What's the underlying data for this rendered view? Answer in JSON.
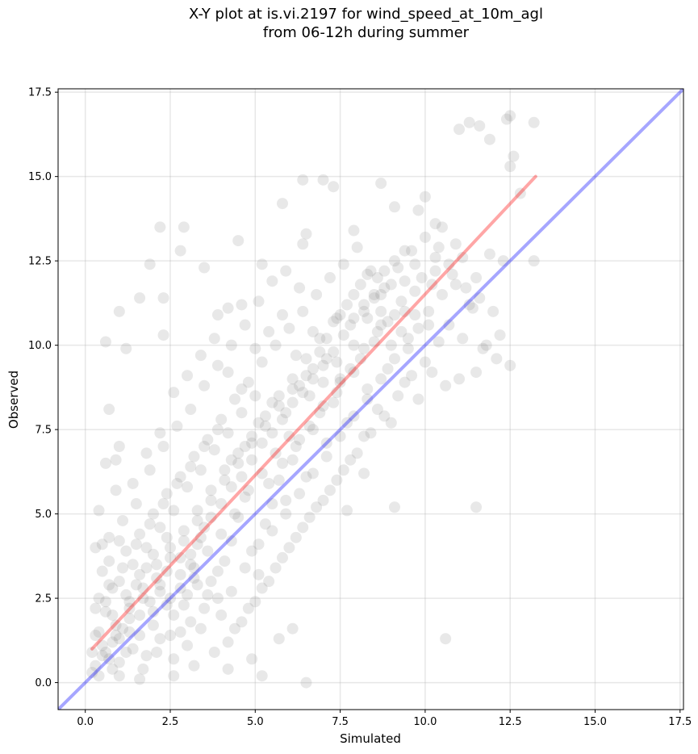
{
  "chart_data": {
    "type": "scatter",
    "title": "X-Y plot at is.vi.2197 for wind_speed_at_10m_agl",
    "subtitle": "from 06-12h during summer",
    "xlabel": "Simulated",
    "ylabel": "Observed",
    "xlim": [
      -0.8,
      17.6
    ],
    "ylim": [
      -0.8,
      17.6
    ],
    "xticks": [
      0.0,
      2.5,
      5.0,
      7.5,
      10.0,
      12.5,
      15.0,
      17.5
    ],
    "yticks": [
      0.0,
      2.5,
      5.0,
      7.5,
      10.0,
      12.5,
      15.0,
      17.5
    ],
    "xtick_labels": [
      "0.0",
      "2.5",
      "5.0",
      "7.5",
      "10.0",
      "12.5",
      "15.0",
      "17.5"
    ],
    "ytick_labels": [
      "0.0",
      "2.5",
      "5.0",
      "7.5",
      "10.0",
      "12.5",
      "15.0",
      "17.5"
    ],
    "grid": true,
    "point_color": "#808080",
    "point_alpha": 0.18,
    "reference_line": {
      "x": [
        -0.8,
        17.6
      ],
      "y": [
        -0.8,
        17.6
      ],
      "color": "#0000ff",
      "alpha": 0.35
    },
    "fit_line": {
      "x": [
        0.2,
        13.25
      ],
      "y": [
        1.0,
        15.0
      ],
      "color": "#ff0000",
      "alpha": 0.35
    },
    "points": [
      [
        0.3,
        4.0
      ],
      [
        0.4,
        5.1
      ],
      [
        0.5,
        4.1
      ],
      [
        0.7,
        4.3
      ],
      [
        0.6,
        6.5
      ],
      [
        0.9,
        5.7
      ],
      [
        0.9,
        6.6
      ],
      [
        1.0,
        7.0
      ],
      [
        0.7,
        8.1
      ],
      [
        0.6,
        10.1
      ],
      [
        1.0,
        11.0
      ],
      [
        1.2,
        9.9
      ],
      [
        1.6,
        11.4
      ],
      [
        1.9,
        12.4
      ],
      [
        2.3,
        11.4
      ],
      [
        2.3,
        10.3
      ],
      [
        2.2,
        13.5
      ],
      [
        2.9,
        13.5
      ],
      [
        2.8,
        12.8
      ],
      [
        3.5,
        12.3
      ],
      [
        3.9,
        10.9
      ],
      [
        4.2,
        11.1
      ],
      [
        4.6,
        11.2
      ],
      [
        4.5,
        13.1
      ],
      [
        5.2,
        12.4
      ],
      [
        5.8,
        14.2
      ],
      [
        6.4,
        13.0
      ],
      [
        6.5,
        13.3
      ],
      [
        6.4,
        14.9
      ],
      [
        7.0,
        14.9
      ],
      [
        7.3,
        14.7
      ],
      [
        7.9,
        13.4
      ],
      [
        8.7,
        14.8
      ],
      [
        9.1,
        14.1
      ],
      [
        9.4,
        12.8
      ],
      [
        9.8,
        14.0
      ],
      [
        10.0,
        14.4
      ],
      [
        10.3,
        13.6
      ],
      [
        10.5,
        13.5
      ],
      [
        11.0,
        16.4
      ],
      [
        11.3,
        16.6
      ],
      [
        11.6,
        16.5
      ],
      [
        11.9,
        16.1
      ],
      [
        12.4,
        16.7
      ],
      [
        12.5,
        16.8
      ],
      [
        12.6,
        15.6
      ],
      [
        12.5,
        15.3
      ],
      [
        12.8,
        14.5
      ],
      [
        13.2,
        16.6
      ],
      [
        13.2,
        12.5
      ],
      [
        12.5,
        9.4
      ],
      [
        11.5,
        9.2
      ],
      [
        11.7,
        9.9
      ],
      [
        11.5,
        5.2
      ],
      [
        10.6,
        1.3
      ],
      [
        9.1,
        5.2
      ],
      [
        8.2,
        6.2
      ],
      [
        7.7,
        5.1
      ],
      [
        6.5,
        0.0
      ],
      [
        6.1,
        1.6
      ],
      [
        5.7,
        1.3
      ],
      [
        5.2,
        0.2
      ],
      [
        4.9,
        0.7
      ],
      [
        4.2,
        0.4
      ],
      [
        3.2,
        0.5
      ],
      [
        2.6,
        0.2
      ],
      [
        1.6,
        0.1
      ],
      [
        1.0,
        0.2
      ],
      [
        0.3,
        0.5
      ],
      [
        0.3,
        1.4
      ],
      [
        0.6,
        2.1
      ],
      [
        0.8,
        1.2
      ],
      [
        1.1,
        1.6
      ],
      [
        1.3,
        2.4
      ],
      [
        1.5,
        2.9
      ],
      [
        1.8,
        3.4
      ],
      [
        2.0,
        2.1
      ],
      [
        2.2,
        2.7
      ],
      [
        2.4,
        3.3
      ],
      [
        2.6,
        2.0
      ],
      [
        2.8,
        1.5
      ],
      [
        3.0,
        2.6
      ],
      [
        3.1,
        3.5
      ],
      [
        3.3,
        4.1
      ],
      [
        3.5,
        4.6
      ],
      [
        3.7,
        3.0
      ],
      [
        3.9,
        2.5
      ],
      [
        4.1,
        3.6
      ],
      [
        4.3,
        4.2
      ],
      [
        4.5,
        4.9
      ],
      [
        4.7,
        5.5
      ],
      [
        4.9,
        3.9
      ],
      [
        5.1,
        3.2
      ],
      [
        5.3,
        4.7
      ],
      [
        5.5,
        5.3
      ],
      [
        5.7,
        6.0
      ],
      [
        5.9,
        5.4
      ],
      [
        6.1,
        6.6
      ],
      [
        6.3,
        7.2
      ],
      [
        6.5,
        6.1
      ],
      [
        6.7,
        7.5
      ],
      [
        6.9,
        8.0
      ],
      [
        7.1,
        7.1
      ],
      [
        7.3,
        8.3
      ],
      [
        7.5,
        8.9
      ],
      [
        7.7,
        7.7
      ],
      [
        7.9,
        9.2
      ],
      [
        8.1,
        9.6
      ],
      [
        8.3,
        8.4
      ],
      [
        8.5,
        10.1
      ],
      [
        8.7,
        10.6
      ],
      [
        8.9,
        9.3
      ],
      [
        9.1,
        10.9
      ],
      [
        9.3,
        11.3
      ],
      [
        9.5,
        10.2
      ],
      [
        9.7,
        11.6
      ],
      [
        9.9,
        12.0
      ],
      [
        10.1,
        11.0
      ],
      [
        10.3,
        12.2
      ],
      [
        10.5,
        11.5
      ],
      [
        10.7,
        12.4
      ],
      [
        10.9,
        11.8
      ],
      [
        11.1,
        12.6
      ],
      [
        11.3,
        11.2
      ],
      [
        10.2,
        9.2
      ],
      [
        9.8,
        8.4
      ],
      [
        9.4,
        8.9
      ],
      [
        9.0,
        7.7
      ],
      [
        8.6,
        8.1
      ],
      [
        8.2,
        7.3
      ],
      [
        7.8,
        6.6
      ],
      [
        7.4,
        6.0
      ],
      [
        7.0,
        5.4
      ],
      [
        6.6,
        4.9
      ],
      [
        6.2,
        4.3
      ],
      [
        5.8,
        3.7
      ],
      [
        5.4,
        3.0
      ],
      [
        5.0,
        2.4
      ],
      [
        4.6,
        1.8
      ],
      [
        4.2,
        1.2
      ],
      [
        3.8,
        0.9
      ],
      [
        3.4,
        1.6
      ],
      [
        3.0,
        1.1
      ],
      [
        2.6,
        0.7
      ],
      [
        2.2,
        1.3
      ],
      [
        1.8,
        0.8
      ],
      [
        1.4,
        1.0
      ],
      [
        1.0,
        0.6
      ],
      [
        0.6,
        0.9
      ],
      [
        0.4,
        2.5
      ],
      [
        0.5,
        3.3
      ],
      [
        0.8,
        2.8
      ],
      [
        1.2,
        3.9
      ],
      [
        1.6,
        4.4
      ],
      [
        2.0,
        5.0
      ],
      [
        2.4,
        5.6
      ],
      [
        2.8,
        6.1
      ],
      [
        3.2,
        6.7
      ],
      [
        3.6,
        7.2
      ],
      [
        4.0,
        7.8
      ],
      [
        4.4,
        8.4
      ],
      [
        4.8,
        8.9
      ],
      [
        5.2,
        9.5
      ],
      [
        5.6,
        10.0
      ],
      [
        6.0,
        10.5
      ],
      [
        6.4,
        11.0
      ],
      [
        6.8,
        11.5
      ],
      [
        7.2,
        12.0
      ],
      [
        7.6,
        12.4
      ],
      [
        8.0,
        12.9
      ],
      [
        8.4,
        12.2
      ],
      [
        8.8,
        11.7
      ],
      [
        7.4,
        10.8
      ],
      [
        6.9,
        9.8
      ],
      [
        6.5,
        9.1
      ],
      [
        6.1,
        8.7
      ],
      [
        5.7,
        8.2
      ],
      [
        5.3,
        7.6
      ],
      [
        4.9,
        7.1
      ],
      [
        4.5,
        6.5
      ],
      [
        4.1,
        6.0
      ],
      [
        3.7,
        5.4
      ],
      [
        3.3,
        4.8
      ],
      [
        2.9,
        4.2
      ],
      [
        2.5,
        3.7
      ],
      [
        2.1,
        3.1
      ],
      [
        1.7,
        2.5
      ],
      [
        1.3,
        1.9
      ],
      [
        0.9,
        1.4
      ],
      [
        0.5,
        0.8
      ],
      [
        0.2,
        0.3
      ],
      [
        1.1,
        4.8
      ],
      [
        1.5,
        5.3
      ],
      [
        1.9,
        6.3
      ],
      [
        2.3,
        7.0
      ],
      [
        2.7,
        7.6
      ],
      [
        3.1,
        8.1
      ],
      [
        3.5,
        8.8
      ],
      [
        3.9,
        9.4
      ],
      [
        4.3,
        10.0
      ],
      [
        4.7,
        10.6
      ],
      [
        5.1,
        11.3
      ],
      [
        5.5,
        11.9
      ],
      [
        5.9,
        12.2
      ],
      [
        6.3,
        11.7
      ],
      [
        6.7,
        10.4
      ],
      [
        7.1,
        9.6
      ],
      [
        7.5,
        9.0
      ],
      [
        7.9,
        10.0
      ],
      [
        8.3,
        10.8
      ],
      [
        8.7,
        11.5
      ],
      [
        9.2,
        12.3
      ],
      [
        9.6,
        12.8
      ],
      [
        10.0,
        13.2
      ],
      [
        10.4,
        12.9
      ],
      [
        10.8,
        12.1
      ],
      [
        11.2,
        11.7
      ],
      [
        11.6,
        11.4
      ],
      [
        12.0,
        11.0
      ],
      [
        12.2,
        10.3
      ],
      [
        11.8,
        10.0
      ],
      [
        11.0,
        9.0
      ],
      [
        10.6,
        8.8
      ],
      [
        10.4,
        10.1
      ],
      [
        10.0,
        9.5
      ],
      [
        9.6,
        9.1
      ],
      [
        9.2,
        8.5
      ],
      [
        8.8,
        7.9
      ],
      [
        8.4,
        7.4
      ],
      [
        8.0,
        6.8
      ],
      [
        7.6,
        6.3
      ],
      [
        7.2,
        5.7
      ],
      [
        6.8,
        5.2
      ],
      [
        6.4,
        4.6
      ],
      [
        6.0,
        4.0
      ],
      [
        5.6,
        3.4
      ],
      [
        5.2,
        2.8
      ],
      [
        4.8,
        2.2
      ],
      [
        4.4,
        1.6
      ],
      [
        4.0,
        2.0
      ],
      [
        3.6,
        2.6
      ],
      [
        3.2,
        3.1
      ],
      [
        2.8,
        3.7
      ],
      [
        2.4,
        4.3
      ],
      [
        2.0,
        3.8
      ],
      [
        1.6,
        3.2
      ],
      [
        1.2,
        2.6
      ],
      [
        0.8,
        2.0
      ],
      [
        0.4,
        1.5
      ],
      [
        0.7,
        3.6
      ],
      [
        1.0,
        4.2
      ],
      [
        1.4,
        5.9
      ],
      [
        1.8,
        6.8
      ],
      [
        2.2,
        7.4
      ],
      [
        2.6,
        8.6
      ],
      [
        3.0,
        9.1
      ],
      [
        3.4,
        9.7
      ],
      [
        3.8,
        10.2
      ],
      [
        4.2,
        9.2
      ],
      [
        4.6,
        8.7
      ],
      [
        5.0,
        9.9
      ],
      [
        5.4,
        10.4
      ],
      [
        5.8,
        10.9
      ],
      [
        6.2,
        9.7
      ],
      [
        6.6,
        8.5
      ],
      [
        7.0,
        8.9
      ],
      [
        7.4,
        9.5
      ],
      [
        7.8,
        10.6
      ],
      [
        8.2,
        11.2
      ],
      [
        8.6,
        12.0
      ],
      [
        9.0,
        11.8
      ],
      [
        9.4,
        11.0
      ],
      [
        9.8,
        10.5
      ],
      [
        10.2,
        11.8
      ],
      [
        4.0,
        4.4
      ],
      [
        4.4,
        5.0
      ],
      [
        4.8,
        5.7
      ],
      [
        5.2,
        6.2
      ],
      [
        5.6,
        6.8
      ],
      [
        6.0,
        7.3
      ],
      [
        3.6,
        3.9
      ],
      [
        3.2,
        3.4
      ],
      [
        2.8,
        2.8
      ],
      [
        2.4,
        2.3
      ],
      [
        2.0,
        1.7
      ],
      [
        1.6,
        1.4
      ],
      [
        1.2,
        0.9
      ],
      [
        0.8,
        0.4
      ],
      [
        5.4,
        5.9
      ],
      [
        5.8,
        6.5
      ],
      [
        6.2,
        7.0
      ],
      [
        6.6,
        7.6
      ],
      [
        7.0,
        8.2
      ],
      [
        7.4,
        8.6
      ],
      [
        7.8,
        9.3
      ],
      [
        8.2,
        9.9
      ],
      [
        8.6,
        10.4
      ],
      [
        9.0,
        10.0
      ],
      [
        3.0,
        5.8
      ],
      [
        3.4,
        6.3
      ],
      [
        3.8,
        6.9
      ],
      [
        4.2,
        7.4
      ],
      [
        4.6,
        8.0
      ],
      [
        5.0,
        8.5
      ],
      [
        2.6,
        5.1
      ],
      [
        2.2,
        4.6
      ],
      [
        1.8,
        4.0
      ],
      [
        1.4,
        3.5
      ],
      [
        1.0,
        3.0
      ],
      [
        0.6,
        2.4
      ],
      [
        5.9,
        8.0
      ],
      [
        6.3,
        8.8
      ],
      [
        6.7,
        9.3
      ],
      [
        7.1,
        10.2
      ],
      [
        7.5,
        10.9
      ],
      [
        7.9,
        11.5
      ],
      [
        8.3,
        12.1
      ],
      [
        8.7,
        11.0
      ],
      [
        9.1,
        9.6
      ],
      [
        9.5,
        9.9
      ],
      [
        3.1,
        1.8
      ],
      [
        3.5,
        2.2
      ],
      [
        3.9,
        3.3
      ],
      [
        4.3,
        2.7
      ],
      [
        4.7,
        3.4
      ],
      [
        5.1,
        4.1
      ],
      [
        5.5,
        4.5
      ],
      [
        5.9,
        5.0
      ],
      [
        6.3,
        5.6
      ],
      [
        6.7,
        6.2
      ],
      [
        7.1,
        6.7
      ],
      [
        7.5,
        7.3
      ],
      [
        7.9,
        7.9
      ],
      [
        8.3,
        8.7
      ],
      [
        8.7,
        9.0
      ],
      [
        1.7,
        0.4
      ],
      [
        2.1,
        0.9
      ],
      [
        2.5,
        1.4
      ],
      [
        2.9,
        2.3
      ],
      [
        3.3,
        2.9
      ],
      [
        0.5,
        1.1
      ],
      [
        0.9,
        1.7
      ],
      [
        1.3,
        2.2
      ],
      [
        1.7,
        2.8
      ],
      [
        2.1,
        3.5
      ],
      [
        2.5,
        4.0
      ],
      [
        2.9,
        4.5
      ],
      [
        3.3,
        5.1
      ],
      [
        3.7,
        5.7
      ],
      [
        4.1,
        6.3
      ],
      [
        4.5,
        6.8
      ],
      [
        4.9,
        7.3
      ],
      [
        5.3,
        7.9
      ],
      [
        5.7,
        8.5
      ],
      [
        6.1,
        9.0
      ],
      [
        6.5,
        9.6
      ],
      [
        6.9,
        10.2
      ],
      [
        7.3,
        10.7
      ],
      [
        7.7,
        11.2
      ],
      [
        8.1,
        11.8
      ],
      [
        8.5,
        11.4
      ],
      [
        8.9,
        10.7
      ],
      [
        9.3,
        10.4
      ],
      [
        9.7,
        10.9
      ],
      [
        10.1,
        10.6
      ],
      [
        4.3,
        6.6
      ],
      [
        4.7,
        7.0
      ],
      [
        5.1,
        7.7
      ],
      [
        5.5,
        8.3
      ],
      [
        3.1,
        6.4
      ],
      [
        3.5,
        7.0
      ],
      [
        3.9,
        7.5
      ],
      [
        2.7,
        5.9
      ],
      [
        2.3,
        5.3
      ],
      [
        1.9,
        4.7
      ],
      [
        1.5,
        4.1
      ],
      [
        1.1,
        3.4
      ],
      [
        0.7,
        2.9
      ],
      [
        0.3,
        2.2
      ],
      [
        0.2,
        0.9
      ],
      [
        0.4,
        0.2
      ],
      [
        0.7,
        0.7
      ],
      [
        1.0,
        1.3
      ],
      [
        1.3,
        1.5
      ],
      [
        1.6,
        2.0
      ],
      [
        1.9,
        2.4
      ],
      [
        2.2,
        2.9
      ],
      [
        2.5,
        2.5
      ],
      [
        2.8,
        3.2
      ],
      [
        3.1,
        3.8
      ],
      [
        3.4,
        4.3
      ],
      [
        3.7,
        4.9
      ],
      [
        4.0,
        5.3
      ],
      [
        4.3,
        5.8
      ],
      [
        4.6,
        6.1
      ],
      [
        4.9,
        6.6
      ],
      [
        5.2,
        7.1
      ],
      [
        5.5,
        7.4
      ],
      [
        5.8,
        7.8
      ],
      [
        6.1,
        8.3
      ],
      [
        6.4,
        8.6
      ],
      [
        6.7,
        9.0
      ],
      [
        7.0,
        9.4
      ],
      [
        7.3,
        9.8
      ],
      [
        7.6,
        10.3
      ],
      [
        7.9,
        10.8
      ],
      [
        8.2,
        11.0
      ],
      [
        8.5,
        11.5
      ],
      [
        8.8,
        12.2
      ],
      [
        9.1,
        12.5
      ],
      [
        9.4,
        11.9
      ],
      [
        9.7,
        12.4
      ],
      [
        10.3,
        12.6
      ],
      [
        10.9,
        13.0
      ],
      [
        11.5,
        12.0
      ],
      [
        11.9,
        12.7
      ],
      [
        12.3,
        12.5
      ],
      [
        10.7,
        10.6
      ],
      [
        11.1,
        10.2
      ],
      [
        11.4,
        11.1
      ],
      [
        12.1,
        9.6
      ]
    ]
  }
}
